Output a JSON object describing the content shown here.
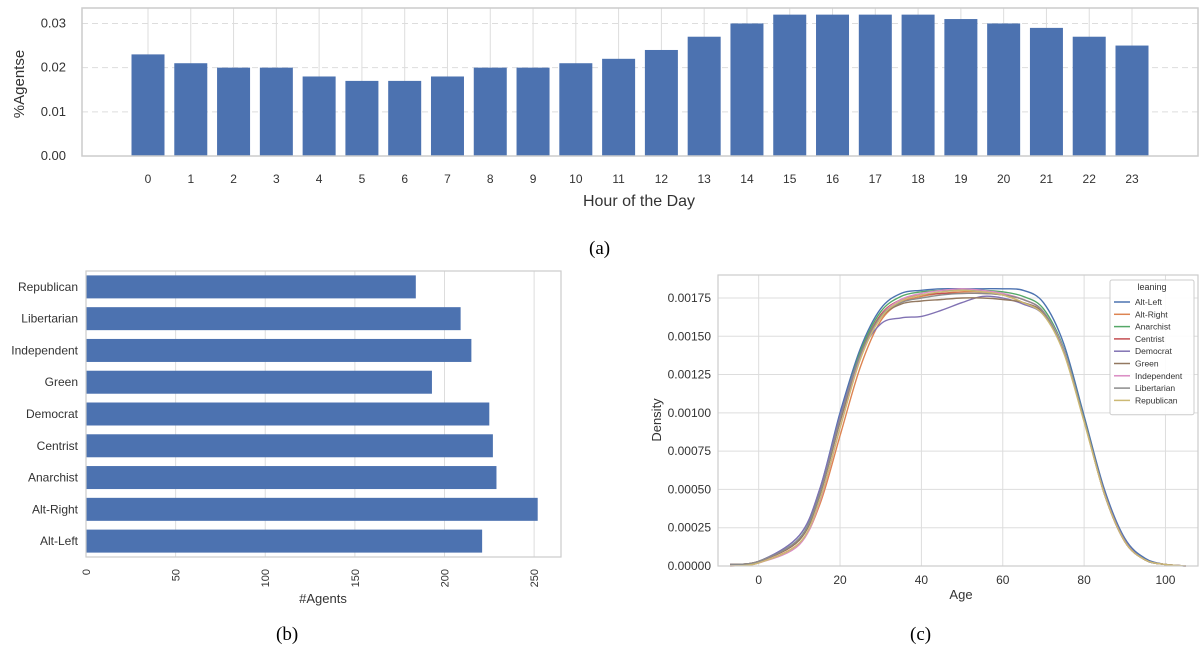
{
  "captions": {
    "a": "(a)",
    "b": "(b)",
    "c": "(c)"
  },
  "colors": {
    "bar": "#4c72b0",
    "grid": "#dddddd",
    "frame": "#cccccc"
  },
  "chart_data": [
    {
      "id": "a",
      "type": "bar",
      "xlabel": "Hour of the Day",
      "ylabel": "%Agentse",
      "categories": [
        "0",
        "1",
        "2",
        "3",
        "4",
        "5",
        "6",
        "7",
        "8",
        "9",
        "10",
        "11",
        "12",
        "13",
        "14",
        "15",
        "16",
        "17",
        "18",
        "19",
        "20",
        "21",
        "22",
        "23"
      ],
      "values": [
        0.023,
        0.021,
        0.02,
        0.02,
        0.018,
        0.017,
        0.017,
        0.018,
        0.02,
        0.02,
        0.021,
        0.022,
        0.024,
        0.027,
        0.03,
        0.032,
        0.032,
        0.032,
        0.032,
        0.031,
        0.03,
        0.029,
        0.027,
        0.025
      ],
      "ylim": [
        0,
        0.0335
      ],
      "yticks": [
        "0.00",
        "0.01",
        "0.02",
        "0.03"
      ],
      "ytick_values": [
        0,
        0.01,
        0.02,
        0.03
      ],
      "grid": true
    },
    {
      "id": "b",
      "type": "bar",
      "orientation": "horizontal",
      "xlabel": "#Agents",
      "ylabel": "",
      "categories": [
        "Alt-Left",
        "Alt-Right",
        "Anarchist",
        "Centrist",
        "Democrat",
        "Green",
        "Independent",
        "Libertarian",
        "Republican"
      ],
      "values": [
        221,
        252,
        229,
        227,
        225,
        193,
        215,
        209,
        184
      ],
      "xlim": [
        0,
        265
      ],
      "xticks": [
        "0",
        "50",
        "100",
        "150",
        "200",
        "250"
      ],
      "xtick_values": [
        0,
        50,
        100,
        150,
        200,
        250
      ],
      "grid": true
    },
    {
      "id": "c",
      "type": "line",
      "xlabel": "Age",
      "ylabel": "Density",
      "xlim": [
        -10,
        108
      ],
      "ylim": [
        0,
        0.0019
      ],
      "xticks": [
        "0",
        "20",
        "40",
        "60",
        "80",
        "100"
      ],
      "xtick_values": [
        0,
        20,
        40,
        60,
        80,
        100
      ],
      "yticks": [
        "0.00000",
        "0.00025",
        "0.00050",
        "0.00075",
        "0.00100",
        "0.00125",
        "0.00150",
        "0.00175"
      ],
      "ytick_values": [
        0,
        0.00025,
        0.0005,
        0.00075,
        0.001,
        0.00125,
        0.0015,
        0.00175
      ],
      "grid": true,
      "legend": {
        "title": "leaning",
        "placement": "top-right"
      },
      "x": [
        -7,
        0,
        10,
        15,
        20,
        25,
        30,
        35,
        40,
        45,
        50,
        55,
        60,
        65,
        70,
        75,
        80,
        85,
        90,
        95,
        100,
        105
      ],
      "series": [
        {
          "name": "Alt-Left",
          "color": "#4c72b0",
          "values": [
            1e-05,
            3e-05,
            0.0002,
            0.0005,
            0.001,
            0.00142,
            0.00168,
            0.00178,
            0.0018,
            0.00181,
            0.00181,
            0.00181,
            0.00181,
            0.0018,
            0.00172,
            0.00145,
            0.00098,
            0.0005,
            0.00018,
            5e-05,
            1e-05,
            0
          ]
        },
        {
          "name": "Alt-Right",
          "color": "#dd8452",
          "values": [
            0,
            2e-05,
            0.00015,
            0.0004,
            0.00085,
            0.0013,
            0.0016,
            0.00172,
            0.00176,
            0.00178,
            0.00179,
            0.00179,
            0.00177,
            0.00172,
            0.00165,
            0.0014,
            0.00095,
            0.00048,
            0.00016,
            4e-05,
            1e-05,
            0
          ]
        },
        {
          "name": "Anarchist",
          "color": "#55a868",
          "values": [
            1e-05,
            3e-05,
            0.00018,
            0.00048,
            0.00097,
            0.0014,
            0.00166,
            0.00176,
            0.00179,
            0.0018,
            0.0018,
            0.0018,
            0.00179,
            0.00176,
            0.00168,
            0.00142,
            0.00096,
            0.00048,
            0.00017,
            4e-05,
            1e-05,
            0
          ]
        },
        {
          "name": "Centrist",
          "color": "#c44e52",
          "values": [
            1e-05,
            3e-05,
            0.00017,
            0.00046,
            0.00095,
            0.00138,
            0.00164,
            0.00174,
            0.00177,
            0.00178,
            0.00178,
            0.00178,
            0.00177,
            0.00174,
            0.00166,
            0.0014,
            0.00095,
            0.00047,
            0.00016,
            4e-05,
            1e-05,
            0
          ]
        },
        {
          "name": "Democrat",
          "color": "#8172b3",
          "values": [
            1e-05,
            3e-05,
            0.0002,
            0.0005,
            0.00098,
            0.00138,
            0.00158,
            0.00162,
            0.00163,
            0.00167,
            0.00172,
            0.00176,
            0.00175,
            0.00171,
            0.00164,
            0.0014,
            0.00095,
            0.00048,
            0.00017,
            4e-05,
            1e-05,
            0
          ]
        },
        {
          "name": "Green",
          "color": "#937860",
          "values": [
            1e-05,
            3e-05,
            0.00017,
            0.00046,
            0.00094,
            0.00136,
            0.00162,
            0.00171,
            0.00173,
            0.00174,
            0.00175,
            0.00175,
            0.00174,
            0.00172,
            0.00165,
            0.0014,
            0.00095,
            0.00047,
            0.00016,
            4e-05,
            1e-05,
            0
          ]
        },
        {
          "name": "Independent",
          "color": "#da8bc3",
          "values": [
            0,
            2e-05,
            0.00014,
            0.00042,
            0.0009,
            0.00136,
            0.00163,
            0.00174,
            0.00178,
            0.0018,
            0.00181,
            0.0018,
            0.00178,
            0.00174,
            0.00166,
            0.00141,
            0.00095,
            0.00047,
            0.00016,
            4e-05,
            1e-05,
            0
          ]
        },
        {
          "name": "Libertarian",
          "color": "#8c8c8c",
          "values": [
            1e-05,
            3e-05,
            0.00018,
            0.00047,
            0.00096,
            0.00138,
            0.00163,
            0.00172,
            0.00175,
            0.00177,
            0.00178,
            0.00178,
            0.00177,
            0.00174,
            0.00166,
            0.0014,
            0.00095,
            0.00047,
            0.00016,
            4e-05,
            1e-05,
            0
          ]
        },
        {
          "name": "Republican",
          "color": "#ccb974",
          "values": [
            0,
            2e-05,
            0.00015,
            0.00043,
            0.0009,
            0.00135,
            0.00162,
            0.00173,
            0.00177,
            0.00179,
            0.0018,
            0.00179,
            0.00177,
            0.00172,
            0.00164,
            0.00139,
            0.00094,
            0.00047,
            0.00016,
            4e-05,
            1e-05,
            0
          ]
        }
      ]
    }
  ]
}
